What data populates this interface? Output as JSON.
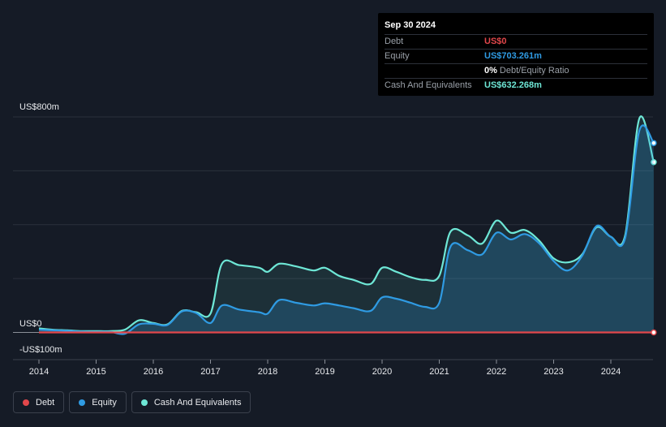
{
  "tooltip": {
    "date": "Sep 30 2024",
    "rows": [
      {
        "label": "Debt",
        "value": "US$0",
        "color": "#e2474b"
      },
      {
        "label": "Equity",
        "value": "US$703.261m",
        "color": "#2f9be3"
      },
      {
        "ratio_value": "0%",
        "ratio_text": "Debt/Equity Ratio"
      },
      {
        "label": "Cash And Equivalents",
        "value": "US$632.268m",
        "color": "#6ee7d6"
      }
    ]
  },
  "legend": [
    {
      "label": "Debt",
      "color": "#e2474b"
    },
    {
      "label": "Equity",
      "color": "#2f9be3"
    },
    {
      "label": "Cash And Equivalents",
      "color": "#6ee7d6"
    }
  ],
  "chart_data": {
    "type": "area",
    "y_ticks": [
      {
        "value": 800,
        "label": "US$800m"
      },
      {
        "value": 0,
        "label": "US$0"
      },
      {
        "value": -100,
        "label": "-US$100m"
      }
    ],
    "ylim": [
      -100,
      800
    ],
    "xlim": [
      2014,
      2024.75
    ],
    "x_ticks": [
      "2014",
      "2015",
      "2016",
      "2017",
      "2018",
      "2019",
      "2020",
      "2021",
      "2022",
      "2023",
      "2024"
    ],
    "grid": true,
    "series": [
      {
        "name": "Cash And Equivalents",
        "color": "#6ee7d6",
        "x": [
          2014.0,
          2014.25,
          2014.5,
          2014.75,
          2015.0,
          2015.25,
          2015.5,
          2015.75,
          2016.0,
          2016.25,
          2016.5,
          2016.75,
          2017.0,
          2017.2,
          2017.5,
          2017.85,
          2018.0,
          2018.2,
          2018.5,
          2018.8,
          2019.0,
          2019.25,
          2019.5,
          2019.8,
          2020.0,
          2020.25,
          2020.5,
          2020.75,
          2021.0,
          2021.2,
          2021.5,
          2021.75,
          2022.0,
          2022.25,
          2022.5,
          2022.75,
          2023.0,
          2023.25,
          2023.5,
          2023.75,
          2024.0,
          2024.25,
          2024.5,
          2024.75
        ],
        "values": [
          15,
          10,
          8,
          5,
          5,
          5,
          10,
          45,
          35,
          30,
          80,
          75,
          70,
          255,
          250,
          240,
          225,
          255,
          245,
          230,
          240,
          210,
          195,
          180,
          240,
          225,
          205,
          195,
          210,
          375,
          360,
          330,
          415,
          370,
          380,
          340,
          275,
          260,
          290,
          390,
          355,
          360,
          795,
          632
        ]
      },
      {
        "name": "Equity",
        "color": "#2f9be3",
        "x": [
          2014.0,
          2014.25,
          2014.5,
          2014.75,
          2015.0,
          2015.25,
          2015.5,
          2015.75,
          2016.0,
          2016.25,
          2016.5,
          2016.75,
          2017.0,
          2017.2,
          2017.5,
          2017.85,
          2018.0,
          2018.2,
          2018.5,
          2018.8,
          2019.0,
          2019.25,
          2019.5,
          2019.8,
          2020.0,
          2020.25,
          2020.5,
          2020.75,
          2021.0,
          2021.2,
          2021.5,
          2021.75,
          2022.0,
          2022.25,
          2022.5,
          2022.75,
          2023.0,
          2023.25,
          2023.5,
          2023.75,
          2024.0,
          2024.25,
          2024.5,
          2024.75
        ],
        "values": [
          10,
          8,
          6,
          3,
          2,
          2,
          -5,
          30,
          32,
          28,
          78,
          72,
          35,
          100,
          85,
          75,
          70,
          120,
          110,
          100,
          108,
          100,
          90,
          80,
          130,
          125,
          110,
          95,
          110,
          320,
          305,
          290,
          370,
          345,
          365,
          330,
          265,
          230,
          285,
          395,
          355,
          350,
          750,
          703
        ]
      },
      {
        "name": "Debt",
        "color": "#e2474b",
        "x": [
          2014.0,
          2024.75
        ],
        "values": [
          0,
          0
        ]
      }
    ]
  }
}
